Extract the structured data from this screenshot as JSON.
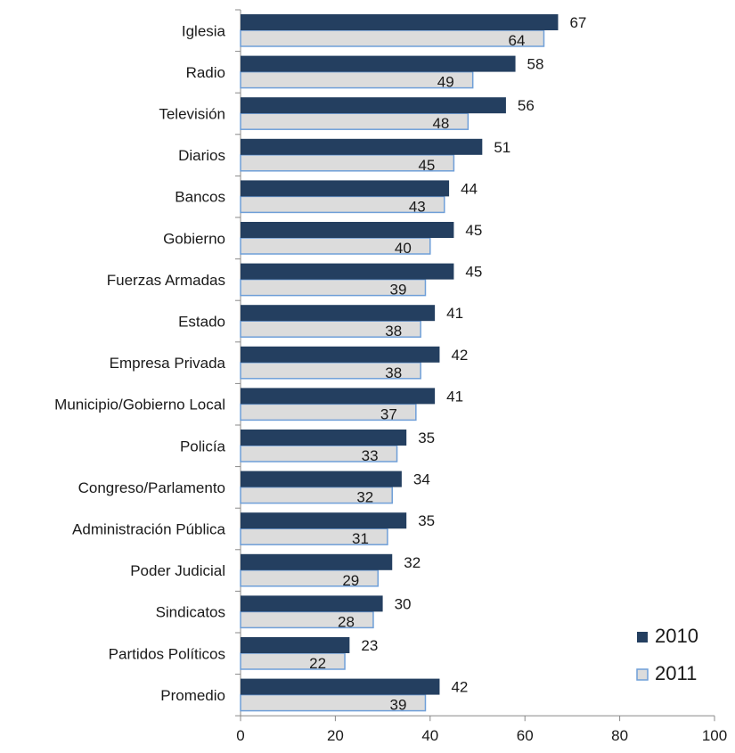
{
  "chart_data": {
    "type": "bar",
    "orientation": "horizontal",
    "categories": [
      "Iglesia",
      "Radio",
      "Televisión",
      "Diarios",
      "Bancos",
      "Gobierno",
      "Fuerzas Armadas",
      "Estado",
      "Empresa Privada",
      "Municipio/Gobierno Local",
      "Policía",
      "Congreso/Parlamento",
      "Administración Pública",
      "Poder Judicial",
      "Sindicatos",
      "Partidos Políticos",
      "Promedio"
    ],
    "series": [
      {
        "name": "2010",
        "color": "#243f60",
        "values": [
          67,
          58,
          56,
          51,
          44,
          45,
          45,
          41,
          42,
          41,
          35,
          34,
          35,
          32,
          30,
          23,
          42
        ]
      },
      {
        "name": "2011",
        "color": "#dcdcdc",
        "border": "#6f9fd8",
        "values": [
          64,
          49,
          48,
          45,
          43,
          40,
          39,
          38,
          38,
          37,
          33,
          32,
          31,
          29,
          28,
          22,
          39
        ]
      }
    ],
    "xlim": [
      0,
      100
    ],
    "xticks": [
      "0",
      "20",
      "40",
      "60",
      "80",
      "100"
    ],
    "legend_position": "bottom-right",
    "grid": false
  }
}
